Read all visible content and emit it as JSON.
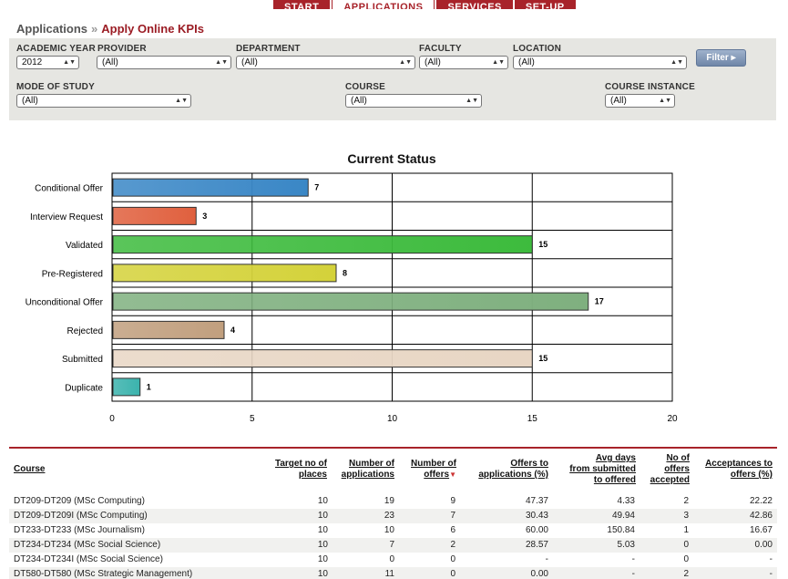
{
  "nav": {
    "tabs": [
      {
        "label": "START",
        "active": false
      },
      {
        "label": "APPLICATIONS",
        "active": true
      },
      {
        "label": "SERVICES",
        "active": false
      },
      {
        "label": "SET-UP",
        "active": false
      }
    ]
  },
  "breadcrumb": {
    "root": "Applications",
    "separator": "»",
    "current": "Apply Online KPIs"
  },
  "filters": {
    "academic_year": {
      "label": "ACADEMIC YEAR",
      "value": "2012"
    },
    "provider": {
      "label": "PROVIDER",
      "value": "(All)"
    },
    "department": {
      "label": "DEPARTMENT",
      "value": "(All)"
    },
    "faculty": {
      "label": "FACULTY",
      "value": "(All)"
    },
    "location": {
      "label": "LOCATION",
      "value": "(All)"
    },
    "mode_of_study": {
      "label": "MODE OF STUDY",
      "value": "(All)"
    },
    "course": {
      "label": "COURSE",
      "value": "(All)"
    },
    "course_instance": {
      "label": "COURSE INSTANCE",
      "value": "(All)"
    },
    "button_label": "Filter ▸"
  },
  "chart_data": {
    "type": "bar",
    "orientation": "horizontal",
    "title": "Current Status",
    "categories": [
      "Conditional Offer",
      "Interview Request",
      "Validated",
      "Pre-Registered",
      "Unconditional Offer",
      "Rejected",
      "Submitted",
      "Duplicate"
    ],
    "values": [
      7,
      3,
      15,
      8,
      17,
      4,
      15,
      1
    ],
    "colors": [
      "#3a87c6",
      "#e0603e",
      "#3dbb3d",
      "#d4d23a",
      "#7fb07f",
      "#c19f7e",
      "#e8d6c4",
      "#3bb3ad"
    ],
    "xlim": [
      0,
      20
    ],
    "xticks": [
      0,
      5,
      10,
      15,
      20
    ],
    "grid": true,
    "xlabel": "",
    "ylabel": ""
  },
  "table": {
    "headers": {
      "course": "Course",
      "target": [
        "Target no of",
        "places"
      ],
      "applications": [
        "Number of",
        "applications"
      ],
      "offers": [
        "Number of",
        "offers"
      ],
      "offers_pct": [
        "Offers to",
        "applications (%)"
      ],
      "avg_days": [
        "Avg days",
        "from submitted",
        "to offered"
      ],
      "accepted": [
        "No of",
        "offers",
        "accepted"
      ],
      "accept_pct": [
        "Acceptances to",
        "offers (%)"
      ]
    },
    "rows": [
      {
        "course": "DT209-DT209 (MSc Computing)",
        "target": "10",
        "applications": "19",
        "offers": "9",
        "offers_pct": "47.37",
        "avg_days": "4.33",
        "accepted": "2",
        "accept_pct": "22.22"
      },
      {
        "course": "DT209-DT209I (MSc Computing)",
        "target": "10",
        "applications": "23",
        "offers": "7",
        "offers_pct": "30.43",
        "avg_days": "49.94",
        "accepted": "3",
        "accept_pct": "42.86"
      },
      {
        "course": "DT233-DT233 (MSc Journalism)",
        "target": "10",
        "applications": "10",
        "offers": "6",
        "offers_pct": "60.00",
        "avg_days": "150.84",
        "accepted": "1",
        "accept_pct": "16.67"
      },
      {
        "course": "DT234-DT234 (MSc Social Science)",
        "target": "10",
        "applications": "7",
        "offers": "2",
        "offers_pct": "28.57",
        "avg_days": "5.03",
        "accepted": "0",
        "accept_pct": "0.00"
      },
      {
        "course": "DT234-DT234I (MSc Social Science)",
        "target": "10",
        "applications": "0",
        "offers": "0",
        "offers_pct": "-",
        "avg_days": "-",
        "accepted": "0",
        "accept_pct": "-"
      },
      {
        "course": "DT580-DT580 (MSc Strategic Management)",
        "target": "10",
        "applications": "11",
        "offers": "0",
        "offers_pct": "0.00",
        "avg_days": "-",
        "accepted": "2",
        "accept_pct": "-"
      }
    ]
  }
}
